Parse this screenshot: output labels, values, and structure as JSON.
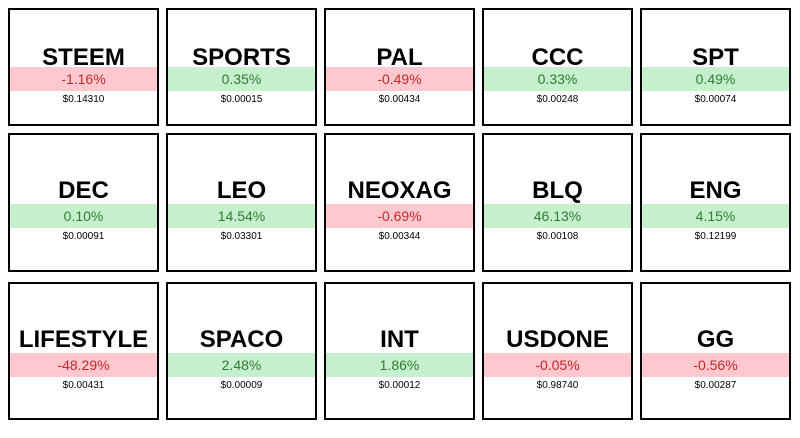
{
  "tiles": [
    {
      "symbol": "STEEM",
      "change": "-1.16%",
      "price": "$0.14310"
    },
    {
      "symbol": "SPORTS",
      "change": "0.35%",
      "price": "$0.00015"
    },
    {
      "symbol": "PAL",
      "change": "-0.49%",
      "price": "$0.00434"
    },
    {
      "symbol": "CCC",
      "change": "0.33%",
      "price": "$0.00248"
    },
    {
      "symbol": "SPT",
      "change": "0.49%",
      "price": "$0.00074"
    },
    {
      "symbol": "DEC",
      "change": "0.10%",
      "price": "$0.00091"
    },
    {
      "symbol": "LEO",
      "change": "14.54%",
      "price": "$0.03301"
    },
    {
      "symbol": "NEOXAG",
      "change": "-0.69%",
      "price": "$0.00344"
    },
    {
      "symbol": "BLQ",
      "change": "46.13%",
      "price": "$0.00108"
    },
    {
      "symbol": "ENG",
      "change": "4.15%",
      "price": "$0.12199"
    },
    {
      "symbol": "LIFESTYLE",
      "change": "-48.29%",
      "price": "$0.00431"
    },
    {
      "symbol": "SPACO",
      "change": "2.48%",
      "price": "$0.00009"
    },
    {
      "symbol": "INT",
      "change": "1.86%",
      "price": "$0.00012"
    },
    {
      "symbol": "USDONE",
      "change": "-0.05%",
      "price": "$0.98740"
    },
    {
      "symbol": "GG",
      "change": "-0.56%",
      "price": "$0.00287"
    }
  ]
}
